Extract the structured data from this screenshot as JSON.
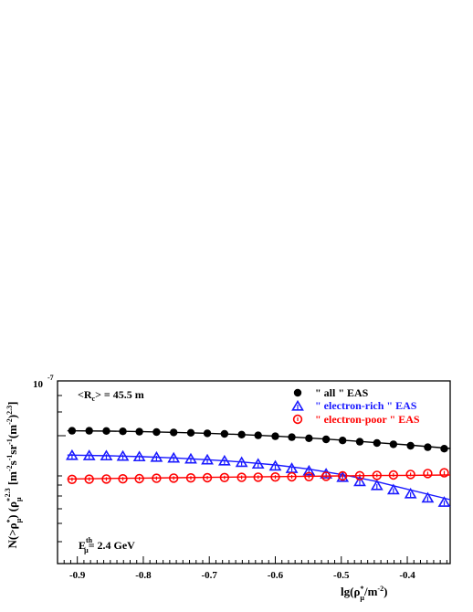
{
  "chart_data": {
    "type": "scatter",
    "xlabel": "lg(ρ_μ*/m⁻²)",
    "ylabel": "N(>ρ_μ*) (ρ_μ*)^2.3 [m⁻² s⁻¹ sr⁻¹ (m⁻²)^2.3]",
    "y_top_label": "10⁻⁷",
    "xlim": [
      -0.93,
      -0.335
    ],
    "x_ticks": [
      -0.9,
      -0.8,
      -0.7,
      -0.6,
      -0.5,
      -0.4
    ],
    "x_tick_labels": [
      "-0.9",
      "-0.8",
      "-0.7",
      "-0.6",
      "-0.5",
      "-0.4"
    ],
    "annotations": {
      "rc": "<R_c> = 45.5 m",
      "eth": "E_μ^th = 2.4 GeV"
    },
    "colors": {
      "all": "#000000",
      "electron_rich": "#1a1aff",
      "electron_poor": "#ff0000"
    },
    "legend_position": "top-right",
    "series": [
      {
        "name": "\" all \" EAS",
        "marker": "filled-circle",
        "x": [
          -0.908,
          -0.882,
          -0.856,
          -0.831,
          -0.806,
          -0.78,
          -0.754,
          -0.728,
          -0.703,
          -0.677,
          -0.651,
          -0.626,
          -0.6,
          -0.575,
          -0.549,
          -0.523,
          -0.498,
          -0.472,
          -0.446,
          -0.421,
          -0.395,
          -0.369,
          -0.344
        ],
        "y": [
          0.727,
          0.727,
          0.726,
          0.724,
          0.722,
          0.72,
          0.718,
          0.716,
          0.713,
          0.71,
          0.706,
          0.702,
          0.697,
          0.692,
          0.686,
          0.68,
          0.674,
          0.667,
          0.66,
          0.653,
          0.645,
          0.637,
          0.629
        ]
      },
      {
        "name": "\" electron-rich \" EAS",
        "marker": "open-triangle",
        "x": [
          -0.908,
          -0.882,
          -0.856,
          -0.831,
          -0.806,
          -0.78,
          -0.754,
          -0.728,
          -0.703,
          -0.677,
          -0.651,
          -0.626,
          -0.6,
          -0.575,
          -0.549,
          -0.523,
          -0.498,
          -0.472,
          -0.446,
          -0.421,
          -0.395,
          -0.369,
          -0.344
        ],
        "y": [
          0.59,
          0.589,
          0.588,
          0.586,
          0.583,
          0.58,
          0.576,
          0.571,
          0.566,
          0.56,
          0.552,
          0.543,
          0.532,
          0.519,
          0.505,
          0.489,
          0.47,
          0.447,
          0.425,
          0.402,
          0.38,
          0.357,
          0.334
        ]
      },
      {
        "name": "\" electron-poor \" EAS",
        "marker": "open-circle",
        "x": [
          -0.908,
          -0.882,
          -0.856,
          -0.831,
          -0.806,
          -0.78,
          -0.754,
          -0.728,
          -0.703,
          -0.677,
          -0.651,
          -0.626,
          -0.6,
          -0.575,
          -0.549,
          -0.523,
          -0.498,
          -0.472,
          -0.446,
          -0.421,
          -0.395,
          -0.369,
          -0.344
        ],
        "y": [
          0.461,
          0.462,
          0.463,
          0.464,
          0.465,
          0.467,
          0.468,
          0.469,
          0.47,
          0.471,
          0.472,
          0.473,
          0.474,
          0.475,
          0.476,
          0.478,
          0.48,
          0.481,
          0.483,
          0.485,
          0.488,
          0.493,
          0.497
        ]
      }
    ],
    "fit_curves": [
      {
        "series": "all",
        "x": [
          -0.915,
          -0.85,
          -0.8,
          -0.75,
          -0.7,
          -0.65,
          -0.6,
          -0.55,
          -0.5,
          -0.45,
          -0.4,
          -0.335
        ],
        "y": [
          0.727,
          0.725,
          0.722,
          0.718,
          0.713,
          0.706,
          0.698,
          0.688,
          0.676,
          0.663,
          0.65,
          0.63
        ]
      },
      {
        "series": "electron-rich",
        "x": [
          -0.915,
          -0.85,
          -0.8,
          -0.75,
          -0.7,
          -0.65,
          -0.6,
          -0.55,
          -0.5,
          -0.45,
          -0.4,
          -0.335
        ],
        "y": [
          0.594,
          0.59,
          0.585,
          0.578,
          0.568,
          0.556,
          0.54,
          0.518,
          0.488,
          0.452,
          0.407,
          0.35
        ]
      },
      {
        "series": "electron-poor",
        "x": [
          -0.915,
          -0.85,
          -0.8,
          -0.75,
          -0.7,
          -0.65,
          -0.6,
          -0.55,
          -0.5,
          -0.45,
          -0.4,
          -0.335
        ],
        "y": [
          0.463,
          0.466,
          0.468,
          0.47,
          0.472,
          0.474,
          0.476,
          0.478,
          0.48,
          0.482,
          0.483,
          0.485
        ]
      }
    ]
  }
}
